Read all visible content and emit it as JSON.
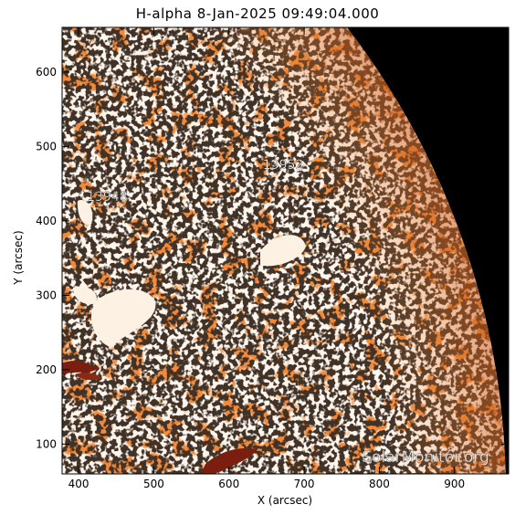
{
  "title": "H-alpha  8-Jan-2025 09:49:04.000",
  "axes": {
    "xlabel": "X (arcsec)",
    "ylabel": "Y (arcsec)",
    "xlim": [
      378,
      972
    ],
    "ylim": [
      60,
      660
    ],
    "xticks": [
      400,
      500,
      600,
      700,
      800,
      900
    ],
    "yticks": [
      100,
      200,
      300,
      400,
      500,
      600
    ]
  },
  "active_regions": [
    {
      "id": "13948",
      "x": 438,
      "y": 427
    },
    {
      "id": "13952",
      "x": 672,
      "y": 470
    }
  ],
  "watermark": "SolarMonitor.org",
  "colors": {
    "disk_base": "#f28a3a",
    "disk_bright": "#fbe3c8",
    "dark_feature": "#7a1e10",
    "off_disk": "#000000"
  }
}
